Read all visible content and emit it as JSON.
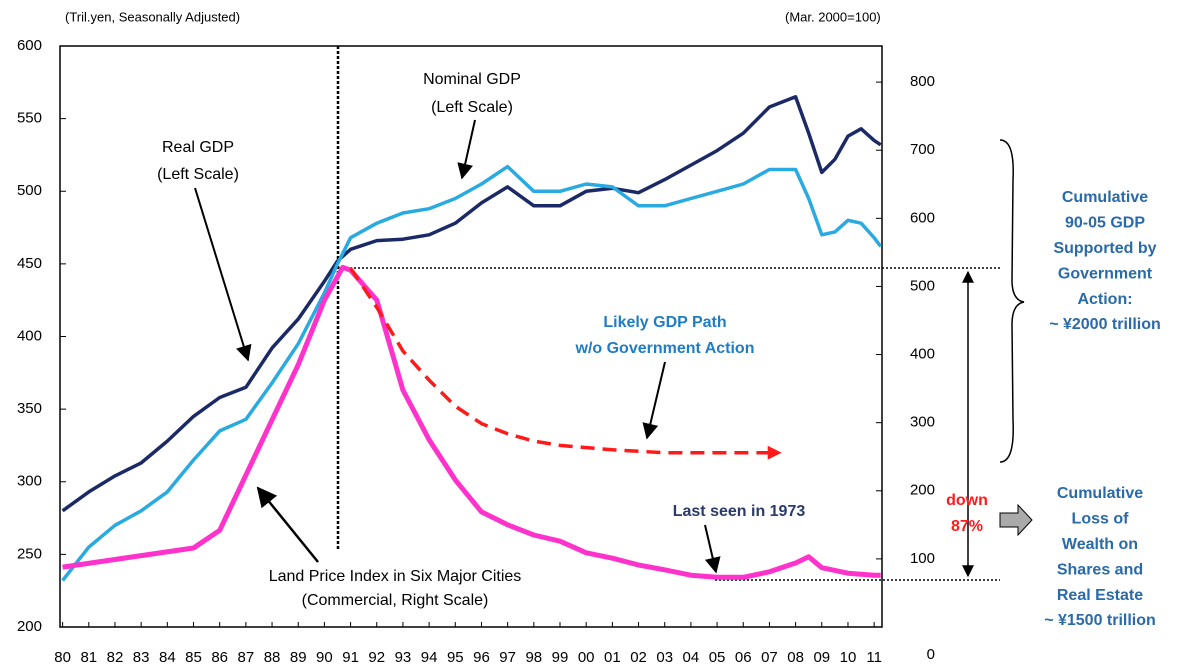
{
  "chart_data": {
    "type": "line",
    "left_unit": "(Tril.yen, Seasonally Adjusted)",
    "right_unit": "(Mar. 2000=100)",
    "xlim": [
      -0.1,
      31.3
    ],
    "xticks": [
      {
        "value": 0,
        "label": "80"
      },
      {
        "value": 1,
        "label": "81"
      },
      {
        "value": 2,
        "label": "82"
      },
      {
        "value": 3,
        "label": "83"
      },
      {
        "value": 4,
        "label": "84"
      },
      {
        "value": 5,
        "label": "85"
      },
      {
        "value": 6,
        "label": "86"
      },
      {
        "value": 7,
        "label": "87"
      },
      {
        "value": 8,
        "label": "88"
      },
      {
        "value": 9,
        "label": "89"
      },
      {
        "value": 10,
        "label": "90"
      },
      {
        "value": 11,
        "label": "91"
      },
      {
        "value": 12,
        "label": "92"
      },
      {
        "value": 13,
        "label": "93"
      },
      {
        "value": 14,
        "label": "94"
      },
      {
        "value": 15,
        "label": "95"
      },
      {
        "value": 16,
        "label": "96"
      },
      {
        "value": 17,
        "label": "97"
      },
      {
        "value": 18,
        "label": "98"
      },
      {
        "value": 19,
        "label": "99"
      },
      {
        "value": 20,
        "label": "00"
      },
      {
        "value": 21,
        "label": "01"
      },
      {
        "value": 22,
        "label": "02"
      },
      {
        "value": 23,
        "label": "03"
      },
      {
        "value": 24,
        "label": "04"
      },
      {
        "value": 25,
        "label": "05"
      },
      {
        "value": 26,
        "label": "06"
      },
      {
        "value": 27,
        "label": "07"
      },
      {
        "value": 28,
        "label": "08"
      },
      {
        "value": 29,
        "label": "09"
      },
      {
        "value": 30,
        "label": "10"
      },
      {
        "value": 31,
        "label": "11"
      }
    ],
    "ylim": [
      200,
      600
    ],
    "yticks": [
      200,
      250,
      300,
      350,
      400,
      450,
      500,
      550,
      600
    ],
    "y2lim": [
      0,
      853
    ],
    "y2ticks": [
      0,
      100,
      200,
      300,
      400,
      500,
      600,
      700,
      800
    ],
    "series": [
      {
        "name": "Real GDP",
        "color": "#1b2a66",
        "width": 3.5,
        "x": [
          0,
          1,
          2,
          3,
          4,
          5,
          6,
          7,
          8,
          9,
          10,
          10.5,
          11,
          12,
          13,
          14,
          15,
          16,
          17,
          18,
          19,
          20,
          21,
          22,
          23,
          24,
          25,
          26,
          27,
          28,
          28.5,
          29,
          29.5,
          30,
          30.5,
          31,
          31.25
        ],
        "values": [
          280,
          293,
          304,
          313,
          328,
          345,
          358,
          365,
          392,
          412,
          438,
          452,
          460,
          466,
          467,
          470,
          478,
          492,
          503,
          490,
          490,
          500,
          502,
          499,
          508,
          518,
          528,
          540,
          558,
          565,
          540,
          513,
          522,
          538,
          543,
          535,
          532
        ]
      },
      {
        "name": "Nominal GDP",
        "color": "#29aae1",
        "width": 3.5,
        "x": [
          0,
          1,
          2,
          3,
          4,
          5,
          6,
          7,
          8,
          9,
          10,
          10.5,
          11,
          12,
          13,
          14,
          15,
          16,
          17,
          18,
          19,
          20,
          21,
          22,
          23,
          24,
          25,
          26,
          27,
          28,
          28.5,
          29,
          29.5,
          30,
          30.5,
          31,
          31.25
        ],
        "values": [
          232,
          255,
          270,
          280,
          293,
          315,
          335,
          343,
          368,
          395,
          430,
          450,
          468,
          478,
          485,
          488,
          495,
          505,
          517,
          500,
          500,
          505,
          503,
          490,
          490,
          495,
          500,
          505,
          515,
          515,
          495,
          470,
          472,
          480,
          478,
          468,
          462
        ]
      },
      {
        "name": "Land Price Index",
        "color": "#ff33cc",
        "width": 5,
        "axis": "y2",
        "x": [
          0,
          5,
          6,
          7,
          8,
          9,
          10,
          10.7,
          11,
          12,
          13,
          14,
          15,
          16,
          17,
          18,
          19,
          20,
          21,
          22,
          23,
          24,
          25,
          26,
          27,
          28,
          28.5,
          29,
          30,
          31,
          31.25
        ],
        "values": [
          88,
          116,
          142,
          223,
          304,
          385,
          480,
          528,
          524,
          480,
          348,
          275,
          216,
          169,
          150,
          135,
          126,
          109,
          101,
          91,
          84,
          76,
          73,
          73,
          81,
          94,
          103,
          87,
          79,
          76,
          76
        ]
      },
      {
        "name": "Likely GDP Path",
        "color": "#ff1a1a",
        "width": 3.5,
        "dashed": true,
        "x": [
          11,
          12,
          13,
          14,
          15,
          16,
          17,
          18,
          19,
          21,
          23,
          25,
          27.2
        ],
        "values": [
          447,
          420,
          390,
          370,
          352,
          340,
          333,
          328,
          325,
          322,
          320,
          320,
          320
        ]
      }
    ],
    "annotations": [
      {
        "lines": [
          "Nominal GDP",
          "(Left Scale)"
        ],
        "color": "#000000",
        "bold": false
      },
      {
        "lines": [
          "Real GDP",
          "(Left Scale)"
        ],
        "color": "#000000",
        "bold": false
      },
      {
        "lines": [
          "Likely GDP Path",
          "w/o Government Action"
        ],
        "color": "#1f7dc4",
        "bold": true
      },
      {
        "lines": [
          "Last seen  in 1973"
        ],
        "color": "#2a3a6a",
        "bold": true
      },
      {
        "lines": [
          "Land Price Index in Six Major Cities",
          "(Commercial, Right Scale)"
        ],
        "color": "#000000",
        "bold": false
      },
      {
        "lines": [
          "down",
          "87%"
        ],
        "color": "#ff1a1a",
        "bold": true
      },
      {
        "lines": [
          "Cumulative",
          "90-05 GDP",
          "Supported by",
          "Government",
          "Action:",
          "~ ¥2000 trillion"
        ],
        "color": "#2a6aa8",
        "bold": true
      },
      {
        "lines": [
          "Cumulative",
          "Loss of",
          "Wealth on",
          "Shares and",
          "Real Estate",
          "~ ¥1500 trillion"
        ],
        "color": "#2a6aa8",
        "bold": true
      }
    ]
  }
}
